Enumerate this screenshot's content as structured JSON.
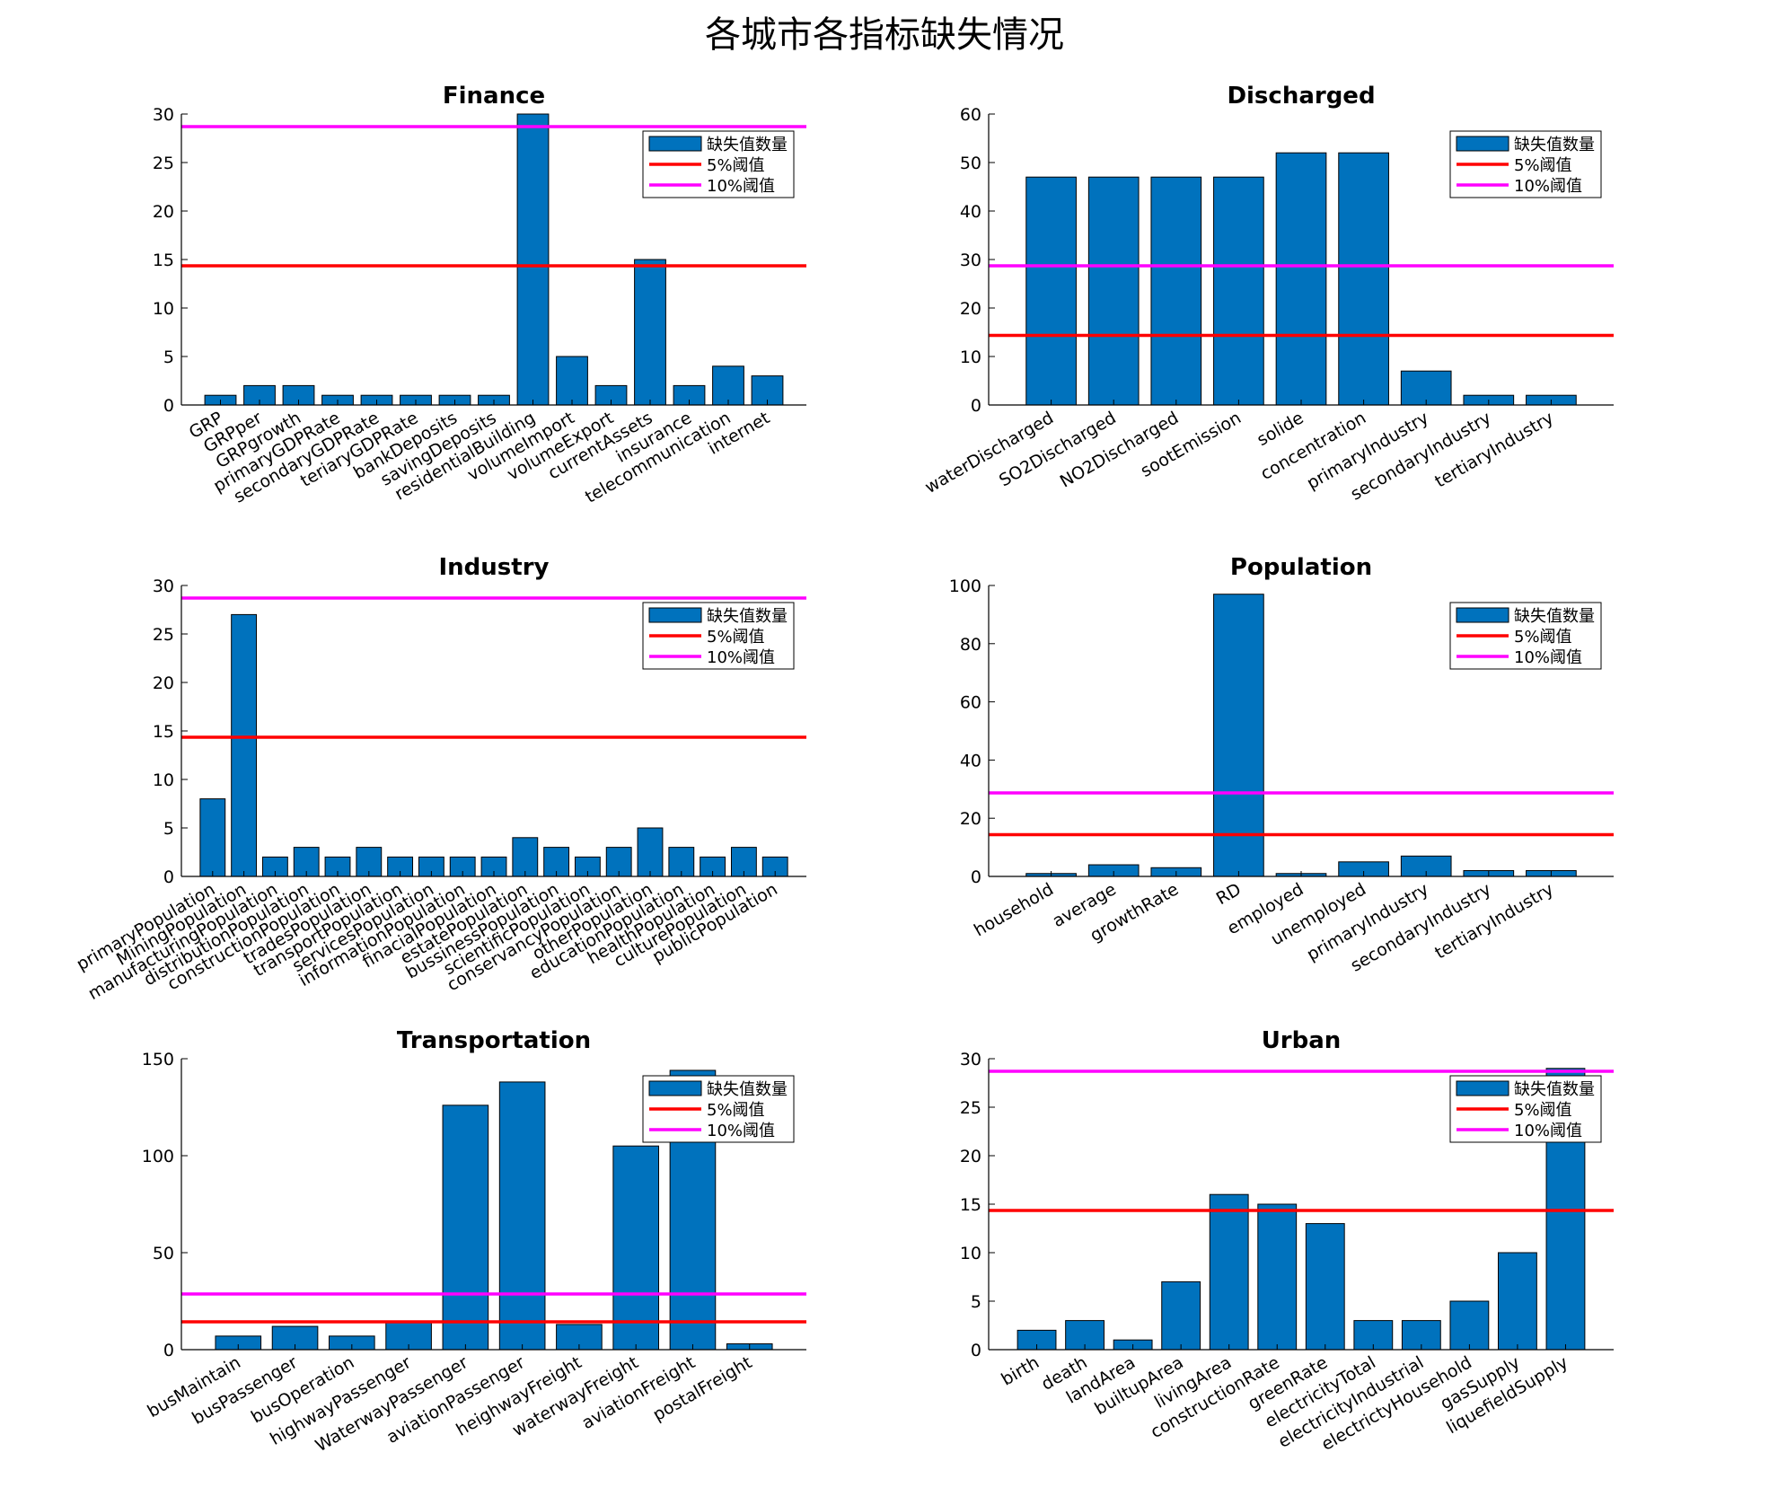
{
  "title": "各城市各指标缺失情况",
  "legend_labels": [
    "缺失值数量",
    "5%阈值",
    "10%阈值"
  ],
  "colors": {
    "bar": "#0072BD",
    "threshold_5": "#FF0000",
    "threshold_10": "#FF00FF"
  },
  "chart_data": [
    {
      "type": "bar",
      "title": "Finance",
      "categories": [
        "GRP",
        "GRPper",
        "GRPgrowth",
        "primaryGDPRate",
        "secondaryGDPRate",
        "teriaryGDPRate",
        "bankDeposits",
        "savingDeposits",
        "residentialBuilding",
        "volumeImport",
        "volumeExport",
        "currentAssets",
        "insurance",
        "telecommunication",
        "internet"
      ],
      "values": [
        1,
        2,
        2,
        1,
        1,
        1,
        1,
        1,
        30,
        5,
        2,
        15,
        2,
        4,
        3
      ],
      "ylim": [
        0,
        30
      ],
      "yticks": [
        0,
        5,
        10,
        15,
        20,
        25,
        30
      ],
      "thresholds": {
        "5%": 14.35,
        "10%": 28.7
      },
      "grid": false,
      "legend": "top-right"
    },
    {
      "type": "bar",
      "title": "Discharged",
      "categories": [
        "waterDischarged",
        "SO2Discharged",
        "NO2Discharged",
        "sootEmission",
        "solide",
        "concentration",
        "primaryIndustry",
        "secondaryIndustry",
        "tertiaryIndustry"
      ],
      "values": [
        47,
        47,
        47,
        47,
        52,
        52,
        7,
        2,
        2
      ],
      "ylim": [
        0,
        60
      ],
      "yticks": [
        0,
        10,
        20,
        30,
        40,
        50,
        60
      ],
      "thresholds": {
        "5%": 14.35,
        "10%": 28.7
      },
      "grid": false,
      "legend": "top-right"
    },
    {
      "type": "bar",
      "title": "Industry",
      "categories": [
        "primaryPopulation",
        "MiningPopulation",
        "manufacturingPopulation",
        "distributionPopulation",
        "constructionPopulation",
        "tradesPopulation",
        "transportPopulation",
        "servicesPopulation",
        "informationPopulation",
        "finacialPopulation",
        "estatePopulation",
        "bussinessPopulation",
        "scientificPopulation",
        "conservancyPopulation",
        "otherPopulation",
        "educationPopulation",
        "healthPopulation",
        "culturePopulation",
        "publicPopulation"
      ],
      "values": [
        8,
        27,
        2,
        3,
        2,
        3,
        2,
        2,
        2,
        2,
        4,
        3,
        2,
        3,
        5,
        3,
        2,
        3,
        2
      ],
      "ylim": [
        0,
        30
      ],
      "yticks": [
        0,
        5,
        10,
        15,
        20,
        25,
        30
      ],
      "thresholds": {
        "5%": 14.35,
        "10%": 28.7
      },
      "grid": false,
      "legend": "top-right"
    },
    {
      "type": "bar",
      "title": "Population",
      "categories": [
        "household",
        "average",
        "growthRate",
        "RD",
        "employed",
        "unemployed",
        "primaryIndustry",
        "secondaryIndustry",
        "tertiaryIndustry"
      ],
      "values": [
        1,
        4,
        3,
        97,
        1,
        5,
        7,
        2,
        2
      ],
      "ylim": [
        0,
        100
      ],
      "yticks": [
        0,
        20,
        40,
        60,
        80,
        100
      ],
      "thresholds": {
        "5%": 14.35,
        "10%": 28.7
      },
      "grid": false,
      "legend": "top-right"
    },
    {
      "type": "bar",
      "title": "Transportation",
      "categories": [
        "busMaintain",
        "busPassenger",
        "busOperation",
        "highwayPassenger",
        "WaterwayPassenger",
        "aviationPassenger",
        "heighwayFreight",
        "waterwayFreight",
        "aviationFreight",
        "postalFreight"
      ],
      "values": [
        7,
        12,
        7,
        14,
        126,
        138,
        13,
        105,
        144,
        3
      ],
      "ylim": [
        0,
        150
      ],
      "yticks": [
        0,
        50,
        100,
        150
      ],
      "thresholds": {
        "5%": 14.35,
        "10%": 28.7
      },
      "grid": false,
      "legend": "top-right"
    },
    {
      "type": "bar",
      "title": "Urban",
      "categories": [
        "birth",
        "death",
        "landArea",
        "builtupArea",
        "livingArea",
        "constructionRate",
        "greenRate",
        "electricityTotal",
        "electricityIndustrial",
        "electrictyHousehold",
        "gasSupply",
        "liquefieldSupply"
      ],
      "values": [
        2,
        3,
        1,
        7,
        16,
        15,
        13,
        3,
        3,
        5,
        10,
        29
      ],
      "ylim": [
        0,
        30
      ],
      "yticks": [
        0,
        5,
        10,
        15,
        20,
        25,
        30
      ],
      "thresholds": {
        "5%": 14.35,
        "10%": 28.7
      },
      "grid": false,
      "legend": "top-right"
    }
  ]
}
